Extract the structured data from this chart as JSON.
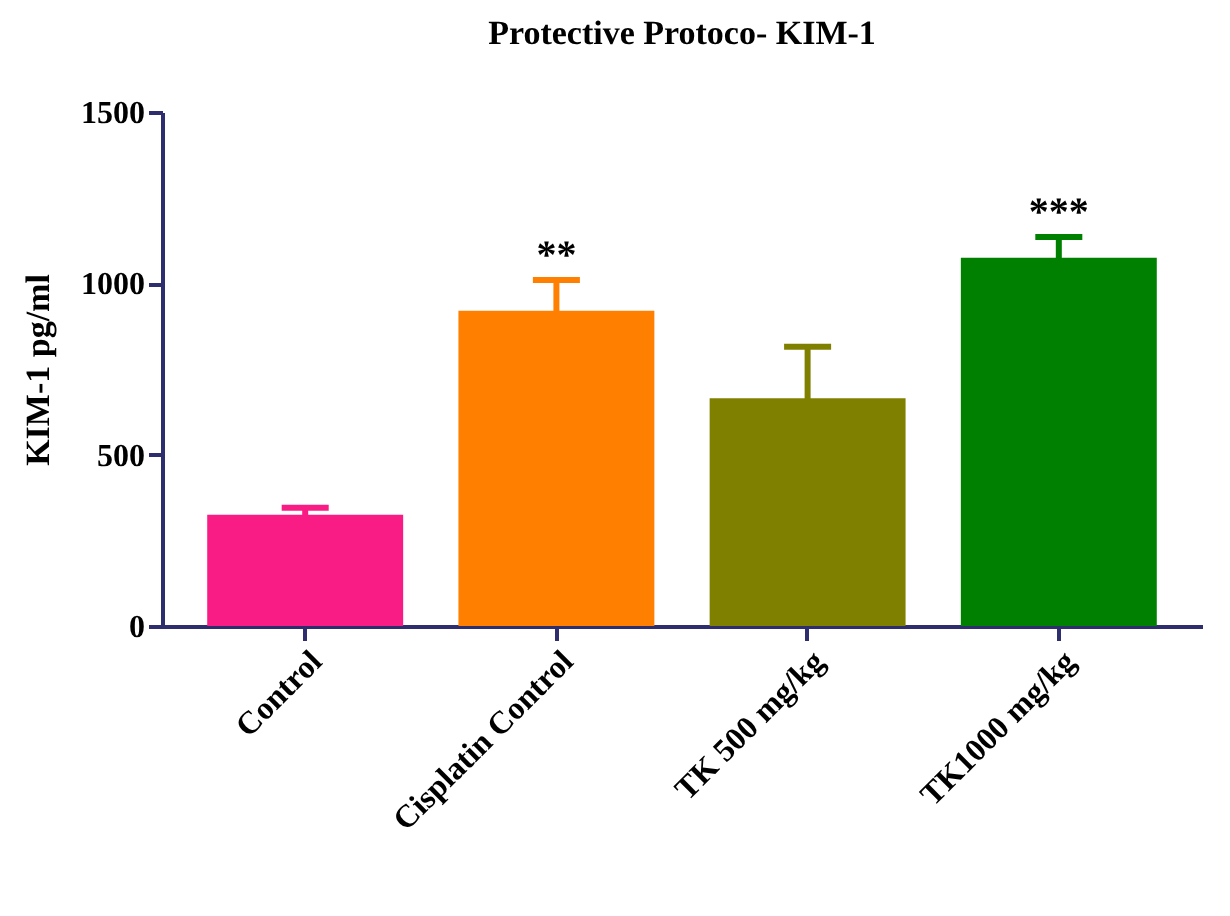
{
  "chart_data": {
    "type": "bar",
    "title": "Protective Protoco- KIM-1",
    "ylabel": "KIM-1 pg/ml",
    "categories": [
      "Control",
      "Cisplatin Control",
      "TK 500 mg/kg",
      "TK1000 mg/kg"
    ],
    "values": [
      325,
      920,
      665,
      1075
    ],
    "errors": [
      20,
      90,
      150,
      60
    ],
    "colors": [
      "#f81c84",
      "#ff8000",
      "#808000",
      "#008000"
    ],
    "ylim": [
      0,
      1500
    ],
    "yticks": [
      0,
      500,
      1000,
      1500
    ],
    "grid": false,
    "annotations": [
      {
        "text": "**",
        "x": "Cisplatin Control",
        "y": 1010
      },
      {
        "text": "***",
        "x": "TK1000 mg/kg",
        "y": 1135
      }
    ]
  }
}
